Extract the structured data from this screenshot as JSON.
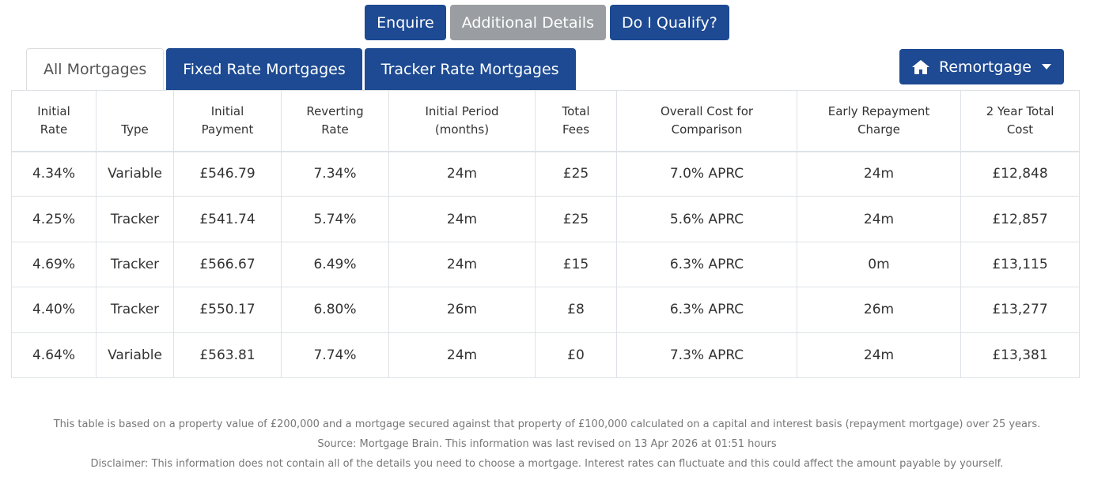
{
  "actions": {
    "enquire": "Enquire",
    "additional_details": "Additional Details",
    "do_i_qualify": "Do I Qualify?"
  },
  "tabs": [
    {
      "label": "All Mortgages"
    },
    {
      "label": "Fixed Rate Mortgages"
    },
    {
      "label": "Tracker Rate Mortgages"
    }
  ],
  "dropdown": {
    "label": "Remortgage",
    "icon": "home-icon"
  },
  "table": {
    "headers": [
      [
        "Initial",
        "Rate"
      ],
      [
        "",
        "Type"
      ],
      [
        "Initial",
        "Payment"
      ],
      [
        "Reverting",
        "Rate"
      ],
      [
        "Initial Period",
        "(months)"
      ],
      [
        "Total",
        "Fees"
      ],
      [
        "Overall Cost for",
        "Comparison"
      ],
      [
        "Early Repayment",
        "Charge"
      ],
      [
        "2 Year Total",
        "Cost"
      ]
    ],
    "rows": [
      [
        "4.34%",
        "Variable",
        "£546.79",
        "7.34%",
        "24m",
        "£25",
        "7.0% APRC",
        "24m",
        "£12,848"
      ],
      [
        "4.25%",
        "Tracker",
        "£541.74",
        "5.74%",
        "24m",
        "£25",
        "5.6% APRC",
        "24m",
        "£12,857"
      ],
      [
        "4.69%",
        "Tracker",
        "£566.67",
        "6.49%",
        "24m",
        "£15",
        "6.3% APRC",
        "0m",
        "£13,115"
      ],
      [
        "4.40%",
        "Tracker",
        "£550.17",
        "6.80%",
        "26m",
        "£8",
        "6.3% APRC",
        "26m",
        "£13,277"
      ],
      [
        "4.64%",
        "Variable",
        "£563.81",
        "7.74%",
        "24m",
        "£0",
        "7.3% APRC",
        "24m",
        "£13,381"
      ]
    ]
  },
  "footer": {
    "basis": "This table is based on a property value of £200,000 and a mortgage secured against that property of £100,000 calculated on a capital and interest basis (repayment mortgage) over 25 years.",
    "source": "Source: Mortgage Brain. This information was last revised on 13 Apr 2026 at 01:51 hours",
    "disclaimer": "Disclaimer: This information does not contain all of the details you need to choose a mortgage. Interest rates can fluctuate and this could affect the amount payable by yourself."
  }
}
